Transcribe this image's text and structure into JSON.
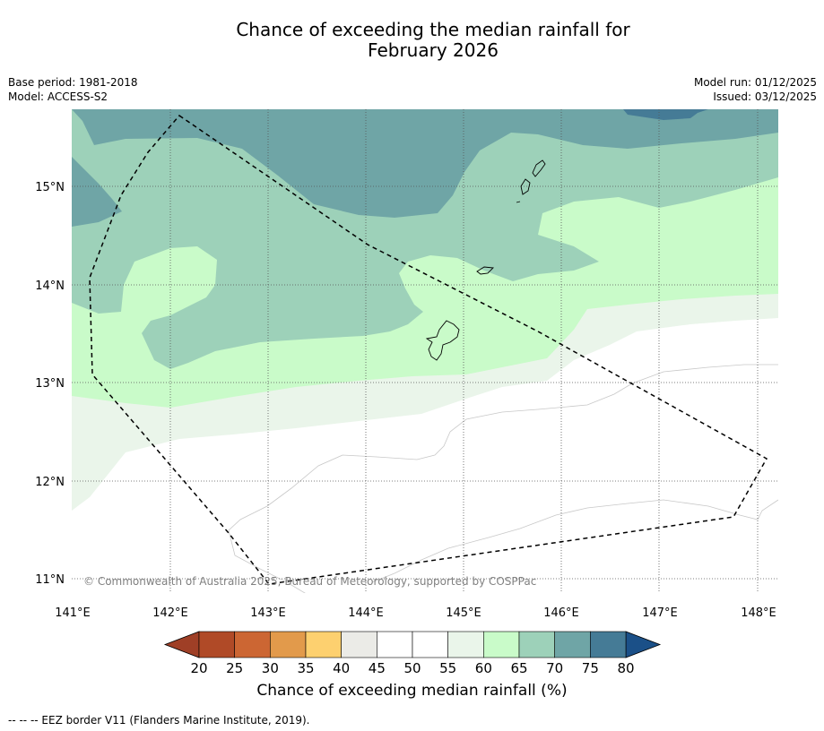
{
  "title": {
    "line1": "Chance of exceeding the median rainfall for",
    "line2": "February 2026"
  },
  "meta": {
    "base_period": "Base period: 1981-2018",
    "model": "Model: ACCESS-S2",
    "model_run": "Model run: 01/12/2025",
    "issued": "Issued: 03/12/2025"
  },
  "map": {
    "lat_labels": [
      "15°N",
      "14°N",
      "13°N",
      "12°N",
      "11°N"
    ],
    "lon_labels": [
      "141°E",
      "142°E",
      "143°E",
      "144°E",
      "145°E",
      "146°E",
      "147°E",
      "148°E"
    ],
    "copyright": "© Commonwealth of Australia 2025, Bureau of Meteorology, supported by COSPPac"
  },
  "colorbar": {
    "title": "Chance of exceeding median rainfall (%)",
    "ticks": [
      "20",
      "25",
      "30",
      "35",
      "40",
      "45",
      "50",
      "55",
      "60",
      "65",
      "70",
      "75",
      "80"
    ],
    "colors": [
      "#b04a27",
      "#cc6633",
      "#e29a4b",
      "#fdd06f",
      "#ebebe7",
      "#ffffff",
      "#ffffff",
      "#eaf5ea",
      "#c9fbc9",
      "#9dd1b9",
      "#6fa5a6",
      "#457b96"
    ],
    "under_color": "#9f3f26",
    "over_color": "#1b5088"
  },
  "footnote": "--  --  -- EEZ border V11 (Flanders Marine Institute, 2019)."
}
